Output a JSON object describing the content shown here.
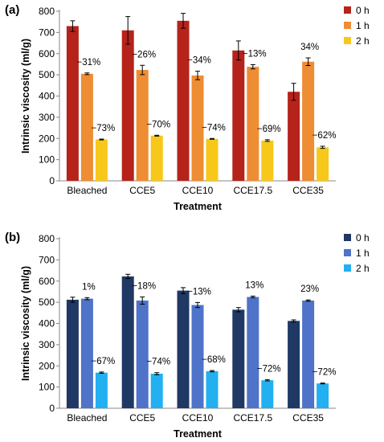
{
  "chart_data": [
    {
      "panel_label": "(a)",
      "type": "bar",
      "xlabel": "Treatment",
      "ylabel": "Intrinsic viscosity (ml/g)",
      "ylim": [
        0,
        800
      ],
      "yticks": [
        0,
        100,
        200,
        300,
        400,
        500,
        600,
        700,
        800
      ],
      "grid": false,
      "legend_placement": "top-right",
      "categories": [
        "Bleached",
        "CCE5",
        "CCE10",
        "CCE17.5",
        "CCE35"
      ],
      "series": [
        {
          "name": "0 h",
          "color": "#b5231b",
          "values": [
            730,
            710,
            755,
            615,
            420
          ],
          "errors": [
            25,
            65,
            35,
            45,
            40
          ]
        },
        {
          "name": "1 h",
          "color": "#ee8d33",
          "values": [
            505,
            523,
            497,
            538,
            562
          ],
          "errors": [
            4,
            22,
            20,
            10,
            18
          ]
        },
        {
          "name": "2 h",
          "color": "#f7c81a",
          "values": [
            195,
            213,
            198,
            190,
            158
          ],
          "errors": [
            2,
            2,
            2,
            4,
            5
          ]
        }
      ],
      "annotations": [
        {
          "category": "Bleached",
          "series": "1 h",
          "text": "−31%"
        },
        {
          "category": "Bleached",
          "series": "2 h",
          "text": "−73%"
        },
        {
          "category": "CCE5",
          "series": "1 h",
          "text": "−26%"
        },
        {
          "category": "CCE5",
          "series": "2 h",
          "text": "−70%"
        },
        {
          "category": "CCE10",
          "series": "1 h",
          "text": "−34%"
        },
        {
          "category": "CCE10",
          "series": "2 h",
          "text": "−74%"
        },
        {
          "category": "CCE17.5",
          "series": "1 h",
          "text": "−13%"
        },
        {
          "category": "CCE17.5",
          "series": "2 h",
          "text": "−69%"
        },
        {
          "category": "CCE35",
          "series": "1 h",
          "text": "34%"
        },
        {
          "category": "CCE35",
          "series": "2 h",
          "text": "−62%"
        }
      ]
    },
    {
      "panel_label": "(b)",
      "type": "bar",
      "xlabel": "Treatment",
      "ylabel": "Intrinsic viscosity (ml/g)",
      "ylim": [
        0,
        800
      ],
      "yticks": [
        0,
        100,
        200,
        300,
        400,
        500,
        600,
        700,
        800
      ],
      "grid": false,
      "legend_placement": "top-right",
      "categories": [
        "Bleached",
        "CCE5",
        "CCE10",
        "CCE17.5",
        "CCE35"
      ],
      "series": [
        {
          "name": "0 h",
          "color": "#1f3864",
          "values": [
            512,
            622,
            555,
            465,
            412
          ],
          "errors": [
            12,
            10,
            14,
            10,
            5
          ]
        },
        {
          "name": "1 h",
          "color": "#4e73c8",
          "values": [
            517,
            508,
            487,
            525,
            508
          ],
          "errors": [
            5,
            17,
            12,
            4,
            3
          ]
        },
        {
          "name": "2 h",
          "color": "#22b0f0",
          "values": [
            168,
            163,
            175,
            132,
            117
          ],
          "errors": [
            3,
            5,
            3,
            3,
            2
          ]
        }
      ],
      "annotations": [
        {
          "category": "Bleached",
          "series": "1 h",
          "text": "1%"
        },
        {
          "category": "Bleached",
          "series": "2 h",
          "text": "−67%"
        },
        {
          "category": "CCE5",
          "series": "1 h",
          "text": "−18%"
        },
        {
          "category": "CCE5",
          "series": "2 h",
          "text": "−74%"
        },
        {
          "category": "CCE10",
          "series": "1 h",
          "text": "−13%"
        },
        {
          "category": "CCE10",
          "series": "2 h",
          "text": "−68%"
        },
        {
          "category": "CCE17.5",
          "series": "1 h",
          "text": "13%"
        },
        {
          "category": "CCE17.5",
          "series": "2 h",
          "text": "−72%"
        },
        {
          "category": "CCE35",
          "series": "1 h",
          "text": "23%"
        },
        {
          "category": "CCE35",
          "series": "2 h",
          "text": "−72%"
        }
      ]
    }
  ]
}
